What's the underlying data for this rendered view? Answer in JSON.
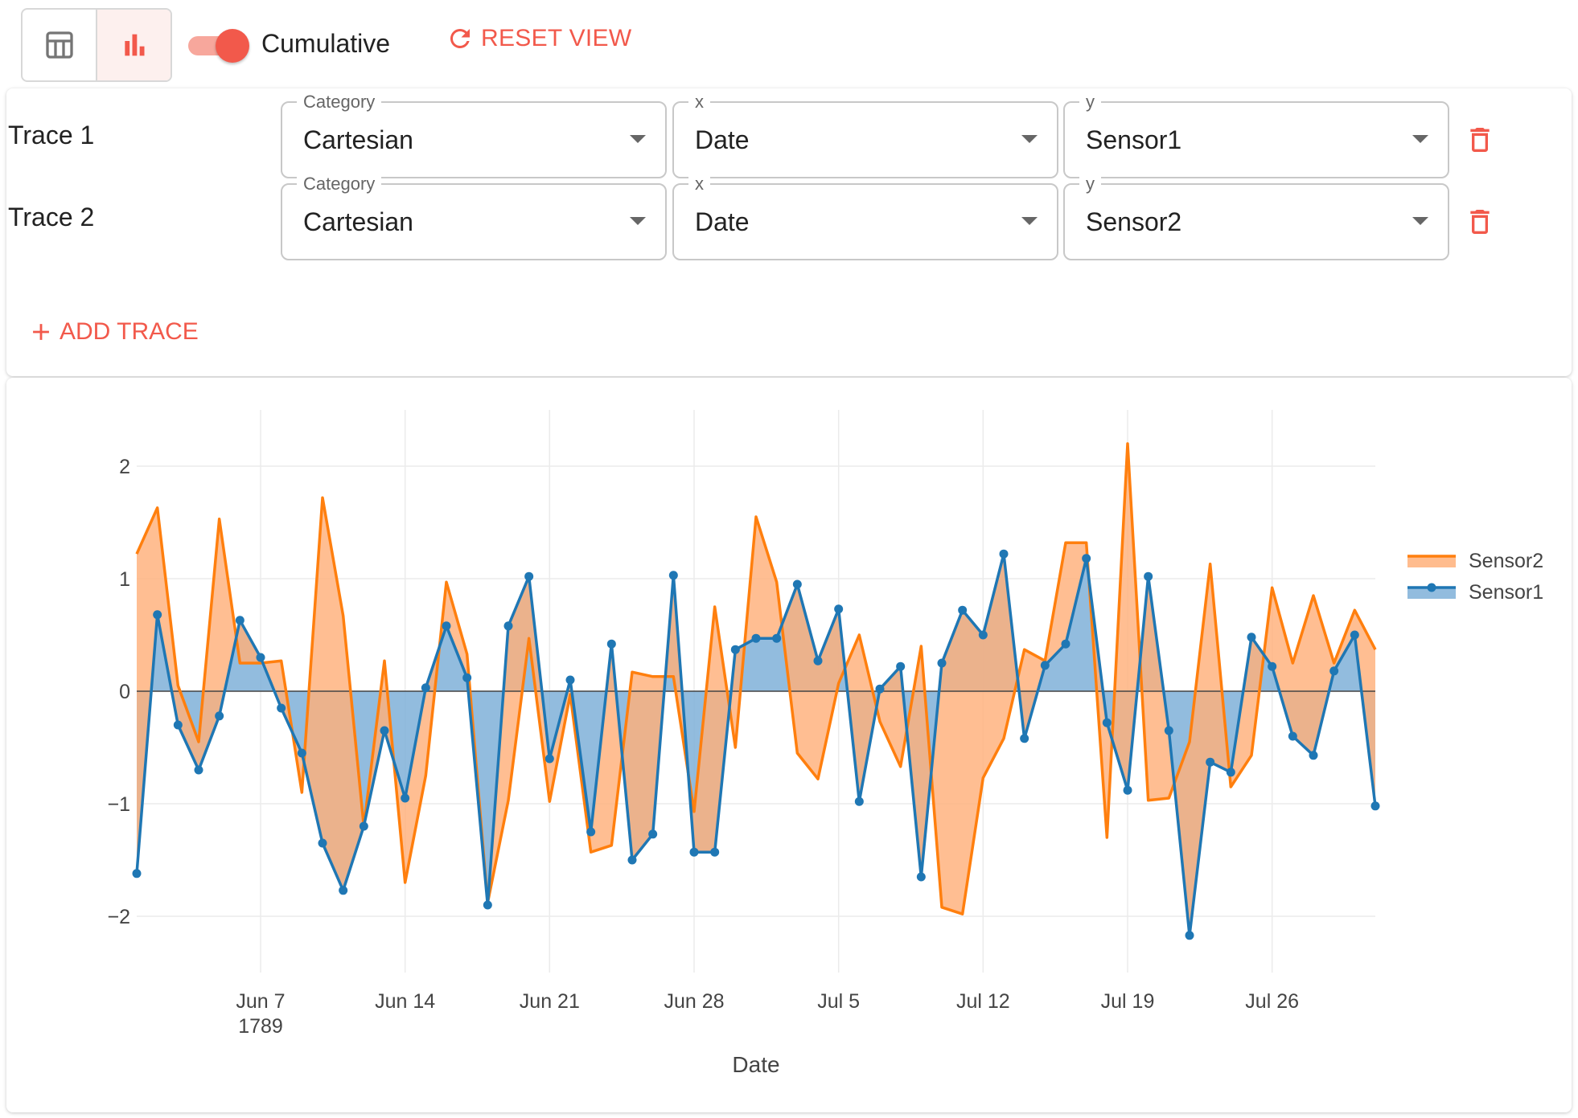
{
  "toolbar": {
    "table_view_icon": "table-icon",
    "chart_view_icon": "bar-chart-icon",
    "cumulative_label": "Cumulative",
    "cumulative_on": true,
    "reset_label": "RESET VIEW",
    "accent_color": "#f2594b"
  },
  "traces": [
    {
      "label": "Trace 1",
      "category_label": "Category",
      "category": "Cartesian",
      "x_label": "x",
      "x": "Date",
      "y_label": "y",
      "y": "Sensor1"
    },
    {
      "label": "Trace 2",
      "category_label": "Category",
      "category": "Cartesian",
      "x_label": "x",
      "x": "Date",
      "y_label": "y",
      "y": "Sensor2"
    }
  ],
  "add_trace_label": "ADD TRACE",
  "chart_data": {
    "type": "area",
    "xlabel": "Date",
    "ylabel": "",
    "x_start": "1789-06-01",
    "x_end": "1789-07-31",
    "ylim": [
      -2.5,
      2.5
    ],
    "y_ticks": [
      2,
      1,
      0,
      -1,
      -2
    ],
    "y_tick_labels": [
      "2",
      "1",
      "0",
      "−1",
      "−2"
    ],
    "x_ticks": [
      {
        "date": "1789-06-07",
        "label": "Jun 7",
        "sublabel": "1789"
      },
      {
        "date": "1789-06-14",
        "label": "Jun 14"
      },
      {
        "date": "1789-06-21",
        "label": "Jun 21"
      },
      {
        "date": "1789-06-28",
        "label": "Jun 28"
      },
      {
        "date": "1789-07-05",
        "label": "Jul 5"
      },
      {
        "date": "1789-07-12",
        "label": "Jul 12"
      },
      {
        "date": "1789-07-19",
        "label": "Jul 19"
      },
      {
        "date": "1789-07-26",
        "label": "Jul 26"
      }
    ],
    "grid": true,
    "legend": "top-right",
    "series": [
      {
        "name": "Sensor2",
        "color": "#ff7f0e",
        "fill": "#ffb07a",
        "markers": false,
        "fill_mode": "tonexty",
        "values": [
          1.22,
          1.63,
          0.05,
          -0.45,
          1.53,
          0.25,
          0.25,
          0.27,
          -0.9,
          1.72,
          0.67,
          -1.2,
          0.27,
          -1.7,
          -0.75,
          0.97,
          0.33,
          -1.88,
          -0.97,
          0.47,
          -0.98,
          -0.03,
          -1.43,
          -1.37,
          0.17,
          0.13,
          0.13,
          -1.07,
          0.75,
          -0.5,
          1.55,
          0.97,
          -0.55,
          -0.78,
          0.07,
          0.5,
          -0.27,
          -0.67,
          0.4,
          -1.92,
          -1.98,
          -0.77,
          -0.42,
          0.37,
          0.27,
          1.32,
          1.32,
          -1.3,
          2.2,
          -0.97,
          -0.95,
          -0.45,
          1.13,
          -0.85,
          -0.57,
          0.92,
          0.25,
          0.85,
          0.25,
          0.72,
          0.37
        ]
      },
      {
        "name": "Sensor1",
        "color": "#1f77b4",
        "fill": "#7fb0d8",
        "markers": true,
        "fill_mode": "tozeroy",
        "values": [
          -1.62,
          0.68,
          -0.3,
          -0.7,
          -0.22,
          0.63,
          0.3,
          -0.15,
          -0.55,
          -1.35,
          -1.77,
          -1.2,
          -0.35,
          -0.95,
          0.03,
          0.58,
          0.12,
          -1.9,
          0.58,
          1.02,
          -0.6,
          0.1,
          -1.25,
          0.42,
          -1.5,
          -1.27,
          1.03,
          -1.43,
          -1.43,
          0.37,
          0.47,
          0.47,
          0.95,
          0.27,
          0.73,
          -0.98,
          0.02,
          0.22,
          -1.65,
          0.25,
          0.72,
          0.5,
          1.22,
          -0.42,
          0.23,
          0.42,
          1.18,
          -0.28,
          -0.88,
          1.02,
          -0.35,
          -2.17,
          -0.63,
          -0.72,
          0.48,
          0.22,
          -0.4,
          -0.57,
          0.18,
          0.5,
          -1.02
        ]
      }
    ]
  }
}
